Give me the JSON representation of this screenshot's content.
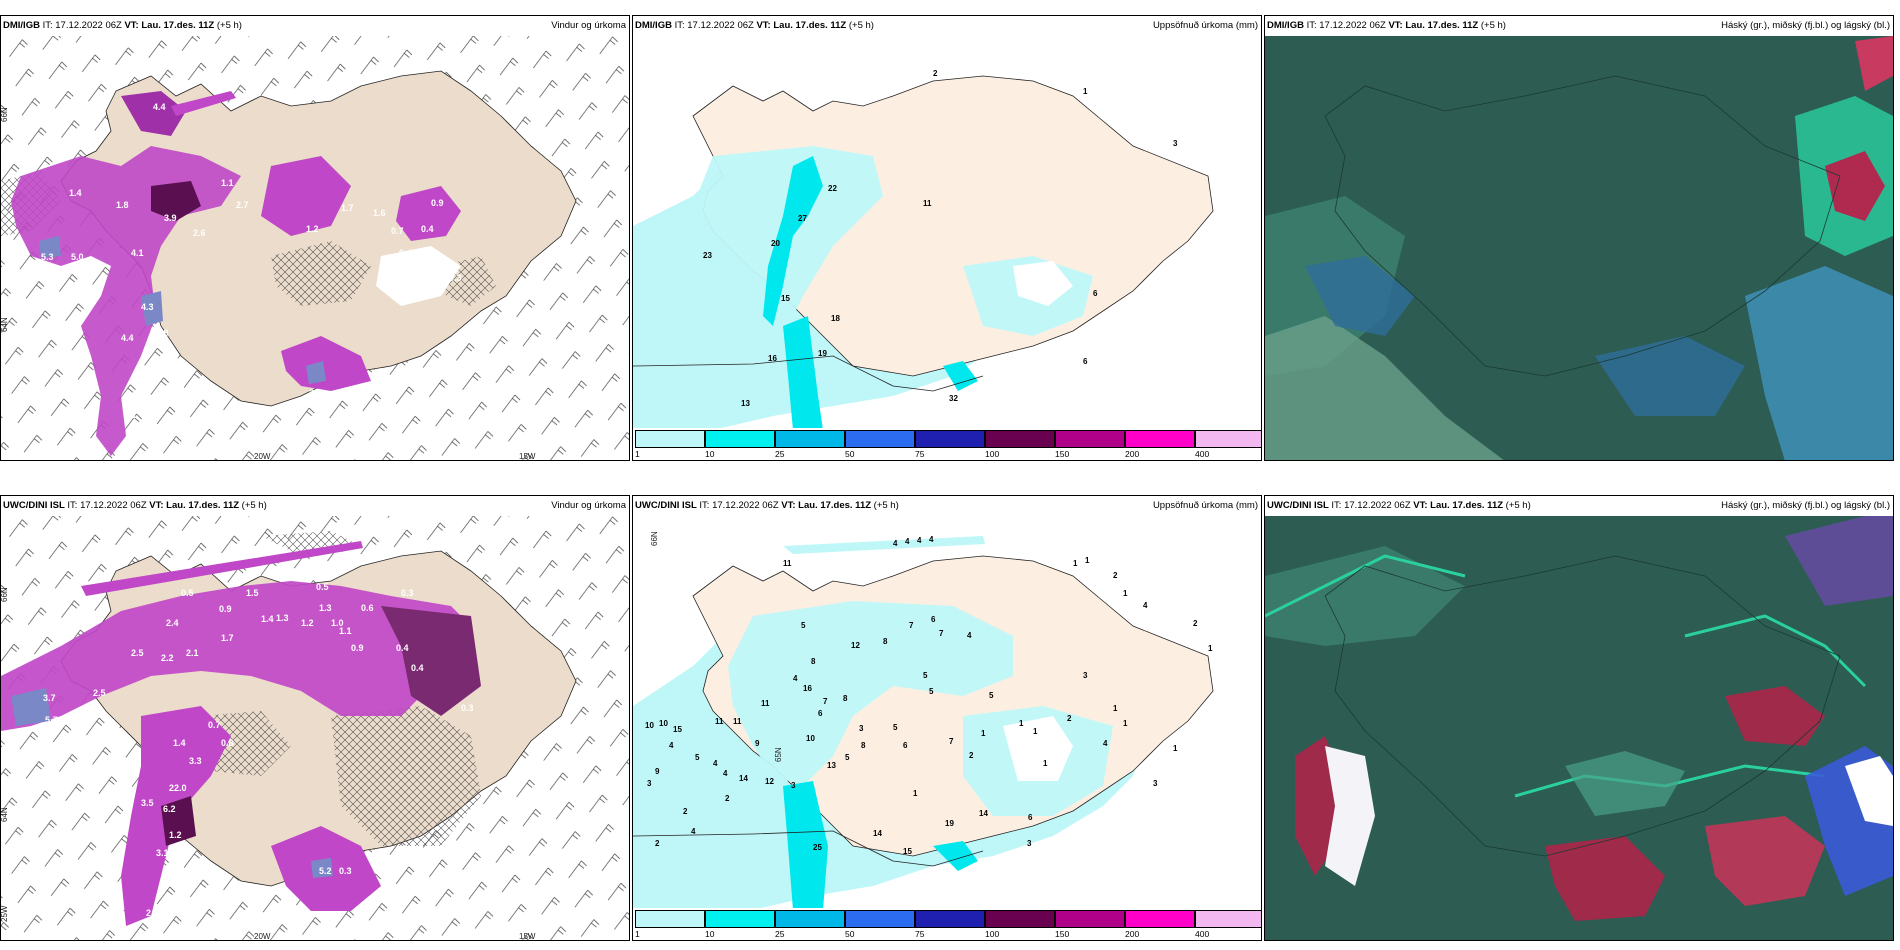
{
  "panels": [
    {
      "id": "p1",
      "title_model": "DMI/IGB",
      "it_label": "IT:",
      "it_value": "17.12.2022 06Z",
      "vt_label": "VT:",
      "vt_value": "Lau. 17.des. 11Z",
      "lead": "(+5 h)",
      "right_title": "Vindur og úrkoma"
    },
    {
      "id": "p2",
      "title_model": "DMI/IGB",
      "it_label": "IT:",
      "it_value": "17.12.2022 06Z",
      "vt_label": "VT:",
      "vt_value": "Lau. 17.des. 11Z",
      "lead": "(+5 h)",
      "right_title": "Uppsöfnuð úrkoma (mm)"
    },
    {
      "id": "p3",
      "title_model": "DMI/IGB",
      "it_label": "IT:",
      "it_value": "17.12.2022 06Z",
      "vt_label": "VT:",
      "vt_value": "Lau. 17.des. 11Z",
      "lead": "(+5 h)",
      "right_title": "Háský (gr.), miðský (fj.bl.) og lágský (bl.)"
    },
    {
      "id": "p4",
      "title_model": "UWC/DINI ISL",
      "it_label": "IT:",
      "it_value": "17.12.2022 06Z",
      "vt_label": "VT:",
      "vt_value": "Lau. 17.des. 11Z",
      "lead": "(+5 h)",
      "right_title": "Vindur og úrkoma"
    },
    {
      "id": "p5",
      "title_model": "UWC/DINI ISL",
      "it_label": "IT:",
      "it_value": "17.12.2022 06Z",
      "vt_label": "VT:",
      "vt_value": "Lau. 17.des. 11Z",
      "lead": "(+5 h)",
      "right_title": "Uppsöfnuð úrkoma (mm)"
    },
    {
      "id": "p6",
      "title_model": "UWC/DINI ISL",
      "it_label": "IT:",
      "it_value": "17.12.2022 06Z",
      "vt_label": "VT:",
      "vt_value": "Lau. 17.des. 11Z",
      "lead": "(+5 h)",
      "right_title": "Háský (gr.), miðský (fj.bl.) og lágský (bl.)"
    }
  ],
  "axis_labels": {
    "lat66": "66N",
    "lat65": "65N",
    "lat64": "64N",
    "lon20": "20W",
    "lon15": "15W",
    "lon25": "25W"
  },
  "colorbar": {
    "ticks": [
      "1",
      "10",
      "25",
      "50",
      "75",
      "100",
      "150",
      "200",
      "400"
    ],
    "colors": [
      "#bff7f9",
      "#00f0f0",
      "#00b8e8",
      "#2b6cf0",
      "#2020b0",
      "#6a0050",
      "#b0008a",
      "#ff00c8",
      "#f4b8f0"
    ]
  },
  "precip_labels_p1": [
    "4.4",
    "1.4",
    "1.1",
    "2.7",
    "3.9",
    "2.6",
    "4.1",
    "5.0",
    "5.3",
    "4.3",
    "2.8",
    "4.4",
    "3.7",
    "3.1",
    "4.0",
    "2.2",
    "3.1",
    "1.2",
    "0.4",
    "0.7",
    "0.4",
    "0.3",
    "0.9",
    "1.6",
    "1.8",
    "1.7"
  ],
  "precip_labels_p4": [
    "0.5",
    "1.5",
    "0.5",
    "0.3",
    "2.4",
    "0.9",
    "1.4",
    "1.2",
    "1.3",
    "1.0",
    "0.6",
    "2.5",
    "2.2",
    "2.1",
    "1.7",
    "0.4",
    "3.7",
    "2.5",
    "1.9",
    "0.3",
    "5.7",
    "0.7",
    "1.4",
    "3.3",
    "22.0",
    "6.2",
    "3.5",
    "1.2",
    "3.1",
    "2.3",
    "5.2",
    "0.3",
    "0.6",
    "1.3",
    "0.4",
    "0.9",
    "1.1",
    "0.8"
  ],
  "accum_labels_p2": [
    "2",
    "1",
    "3",
    "6",
    "22",
    "11",
    "27",
    "20",
    "23",
    "15",
    "18",
    "19",
    "16",
    "13",
    "32",
    "6"
  ],
  "accum_labels_p5": [
    "4",
    "4",
    "4",
    "4",
    "11",
    "1",
    "1",
    "2",
    "1",
    "4",
    "2",
    "1",
    "5",
    "7",
    "6",
    "7",
    "4",
    "8",
    "12",
    "8",
    "4",
    "5",
    "3",
    "16",
    "5",
    "7",
    "11",
    "6",
    "8",
    "10",
    "10",
    "15",
    "11",
    "11",
    "10",
    "4",
    "5",
    "4",
    "9",
    "3",
    "14",
    "12",
    "3",
    "13",
    "2",
    "14",
    "4",
    "2",
    "25",
    "15",
    "1",
    "14",
    "19",
    "6",
    "3",
    "1",
    "2",
    "1",
    "1",
    "1",
    "4",
    "1",
    "1",
    "3",
    "7",
    "5",
    "6",
    "1",
    "2",
    "8",
    "5",
    "2",
    "3",
    "9",
    "4",
    "5"
  ]
}
